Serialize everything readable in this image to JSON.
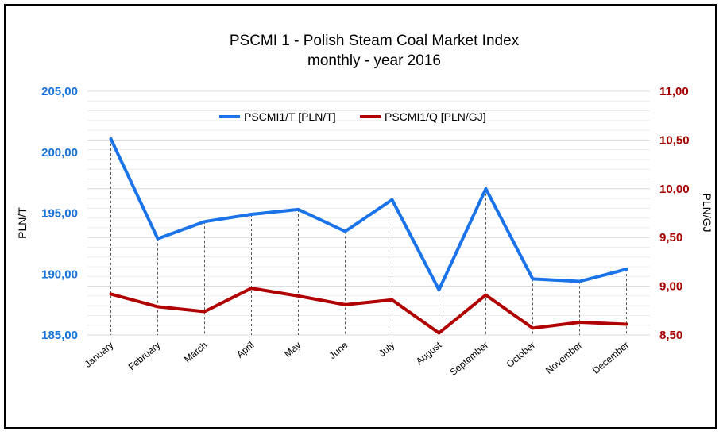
{
  "chart_data": {
    "type": "line",
    "title": "PSCMI 1 - Polish Steam Coal Market Index",
    "subtitle": "monthly  - year  2016",
    "categories": [
      "January",
      "February",
      "March",
      "April",
      "May",
      "June",
      "July",
      "August",
      "September",
      "October",
      "November",
      "December"
    ],
    "y_left": {
      "label": "PLN/T",
      "range": [
        185,
        205
      ],
      "ticks": [
        "185,00",
        "190,00",
        "195,00",
        "200,00",
        "205,00"
      ],
      "color": "#1a73e8"
    },
    "y_right": {
      "label": "PLN/GJ",
      "range": [
        8.5,
        11.0
      ],
      "ticks": [
        "8,50",
        "9,00",
        "9,50",
        "10,00",
        "10,50",
        "11,00"
      ],
      "color": "#b00000"
    },
    "series": [
      {
        "name": "PSCMI1/T  [PLN/T]",
        "axis": "left",
        "color": "#1a73e8",
        "values": [
          201.1,
          192.9,
          194.3,
          194.9,
          195.3,
          193.5,
          196.1,
          188.7,
          197.0,
          189.6,
          189.4,
          190.4
        ]
      },
      {
        "name": "PSCMI1/Q  [PLN/GJ]",
        "axis": "right",
        "color": "#b00000",
        "values": [
          8.92,
          8.79,
          8.74,
          8.98,
          8.9,
          8.81,
          8.86,
          8.52,
          8.91,
          8.57,
          8.63,
          8.61
        ]
      }
    ],
    "grid": true,
    "drop_lines": true,
    "legend": "top-center"
  }
}
